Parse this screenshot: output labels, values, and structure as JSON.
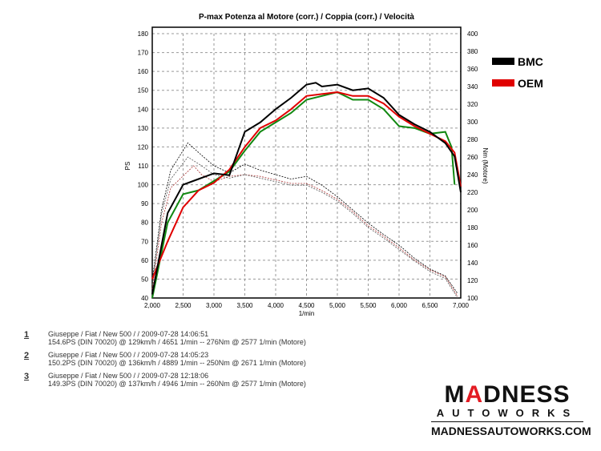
{
  "chart_data": {
    "type": "line",
    "title": "P-max Potenza al Motore (corr.) / Coppia (corr.) / Velocità",
    "xlabel": "1/min",
    "ylabel": "PS",
    "y2label": "Nm (Motore)",
    "xlim": [
      2000,
      7000
    ],
    "ylim": [
      40,
      180
    ],
    "y2lim": [
      100,
      400
    ],
    "xticks": [
      "2,000",
      "2,500",
      "3,000",
      "3,500",
      "4,000",
      "4,500",
      "5,000",
      "5,500",
      "6,000",
      "6,500",
      "7,000"
    ],
    "yticks": [
      "40",
      "50",
      "60",
      "70",
      "80",
      "90",
      "100",
      "110",
      "120",
      "130",
      "140",
      "150",
      "160",
      "170",
      "180"
    ],
    "y2ticks": [
      "100",
      "120",
      "140",
      "160",
      "180",
      "200",
      "220",
      "240",
      "260",
      "280",
      "300",
      "320",
      "340",
      "360",
      "380",
      "400"
    ],
    "grid": true,
    "legend": {
      "placement": "right",
      "entries": [
        {
          "label": "BMC",
          "color": "#000000"
        },
        {
          "label": "OEM",
          "color": "#e00000"
        }
      ]
    },
    "power_series": [
      {
        "name": "BMC",
        "color": "#000000",
        "x": [
          2000,
          2250,
          2500,
          2750,
          3000,
          3250,
          3500,
          3750,
          4000,
          4250,
          4500,
          4650,
          4750,
          5000,
          5250,
          5500,
          5750,
          6000,
          6250,
          6500,
          6750,
          6900,
          7000
        ],
        "y": [
          42,
          85,
          100,
          103,
          106,
          105,
          128,
          133,
          140,
          146,
          153,
          154,
          152,
          153,
          150,
          151,
          146,
          137,
          132,
          128,
          122,
          115,
          96
        ]
      },
      {
        "name": "OEM",
        "color": "#e00000",
        "x": [
          2000,
          2250,
          2500,
          2750,
          3000,
          3250,
          3500,
          3750,
          4000,
          4250,
          4500,
          4750,
          5000,
          5250,
          5500,
          5750,
          6000,
          6250,
          6500,
          6750,
          6900,
          7000
        ],
        "y": [
          50,
          70,
          88,
          97,
          101,
          108,
          120,
          130,
          134,
          140,
          147,
          148,
          149,
          147,
          147,
          143,
          136,
          131,
          127,
          123,
          117,
          99
        ]
      },
      {
        "name": "Run 3",
        "color": "#118811",
        "x": [
          2000,
          2250,
          2500,
          2750,
          3000,
          3250,
          3500,
          3750,
          4000,
          4250,
          4500,
          4750,
          5000,
          5250,
          5500,
          5750,
          6000,
          6250,
          6500,
          6750,
          6850,
          6900
        ],
        "y": [
          40,
          80,
          95,
          97,
          102,
          107,
          118,
          128,
          133,
          138,
          145,
          147,
          149,
          145,
          145,
          140,
          131,
          130,
          127,
          128,
          120,
          100
        ]
      }
    ],
    "torque_series": [
      {
        "name": "BMC",
        "color": "#000000",
        "x": [
          2000,
          2150,
          2300,
          2577,
          2800,
          3000,
          3250,
          3500,
          3750,
          4000,
          4250,
          4500,
          4750,
          5000,
          5250,
          5500,
          5750,
          6000,
          6250,
          6500,
          6750,
          6950
        ],
        "y": [
          120,
          200,
          245,
          276,
          262,
          250,
          242,
          252,
          245,
          240,
          235,
          238,
          228,
          215,
          200,
          185,
          172,
          160,
          145,
          133,
          125,
          105
        ]
      },
      {
        "name": "OEM",
        "color": "#aa3333",
        "x": [
          2000,
          2150,
          2300,
          2671,
          2800,
          3000,
          3250,
          3500,
          3750,
          4000,
          4250,
          4500,
          4750,
          5000,
          5250,
          5500,
          5750,
          6000,
          6250,
          6500,
          6750,
          6950
        ],
        "y": [
          110,
          185,
          225,
          250,
          240,
          232,
          238,
          240,
          238,
          234,
          230,
          230,
          222,
          212,
          198,
          182,
          170,
          157,
          143,
          132,
          124,
          102
        ]
      },
      {
        "name": "Run 3",
        "color": "#555555",
        "x": [
          2000,
          2150,
          2300,
          2577,
          2800,
          3000,
          3250,
          3500,
          3750,
          4000,
          4250,
          4500,
          4750,
          5000,
          5250,
          5500,
          5750,
          6000,
          6250,
          6500,
          6750,
          6950
        ],
        "y": [
          115,
          195,
          235,
          260,
          250,
          240,
          236,
          240,
          236,
          232,
          228,
          228,
          220,
          210,
          196,
          180,
          168,
          155,
          142,
          130,
          122,
          100
        ]
      }
    ]
  },
  "runs": [
    {
      "num": "1",
      "line1": "Giuseppe / Fiat / New 500 /  / 2009-07-28 14:06:51",
      "line2": "154.6PS (DIN 70020) @ 129km/h / 4651 1/min -- 276Nm @ 2577 1/min (Motore)"
    },
    {
      "num": "2",
      "line1": "Giuseppe / Fiat / New 500 /  / 2009-07-28 14:05:23",
      "line2": "150.2PS (DIN 70020) @ 136km/h / 4889 1/min -- 250Nm @ 2671 1/min (Motore)"
    },
    {
      "num": "3",
      "line1": "Giuseppe / Fiat / New 500 /  / 2009-07-28 12:18:06",
      "line2": "149.3PS (DIN 70020) @ 137km/h / 4946 1/min -- 260Nm @ 2577 1/min (Motore)"
    }
  ],
  "logo": {
    "word1_pre": "M",
    "word1_a": "A",
    "word1_post": "DNESS",
    "word2": "AUTOWORKS",
    "url": "MADNESSAUTOWORKS.COM"
  }
}
